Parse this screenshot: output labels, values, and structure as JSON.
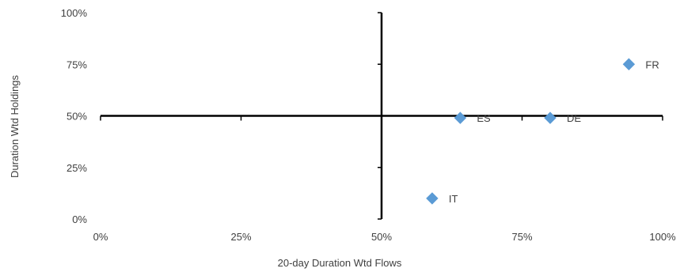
{
  "chart_data": {
    "type": "scatter",
    "title": "",
    "xlabel": "20-day Duration Wtd Flows",
    "ylabel": "Duration Wtd Holdings",
    "xlim": [
      0,
      100
    ],
    "ylim": [
      0,
      100
    ],
    "x_ticks": [
      "0%",
      "25%",
      "50%",
      "75%",
      "100%"
    ],
    "y_ticks": [
      "0%",
      "25%",
      "50%",
      "75%",
      "100%"
    ],
    "x_tick_values": [
      0,
      25,
      50,
      75,
      100
    ],
    "y_tick_values": [
      0,
      25,
      50,
      75,
      100
    ],
    "crosshair": {
      "x": 50,
      "y": 50
    },
    "grid": false,
    "legend": "none",
    "marker": "diamond",
    "color": "#5B9BD5",
    "points": [
      {
        "label": "FR",
        "x": 94,
        "y": 75
      },
      {
        "label": "ES",
        "x": 64,
        "y": 49
      },
      {
        "label": "DE",
        "x": 80,
        "y": 49
      },
      {
        "label": "IT",
        "x": 59,
        "y": 10
      }
    ]
  }
}
